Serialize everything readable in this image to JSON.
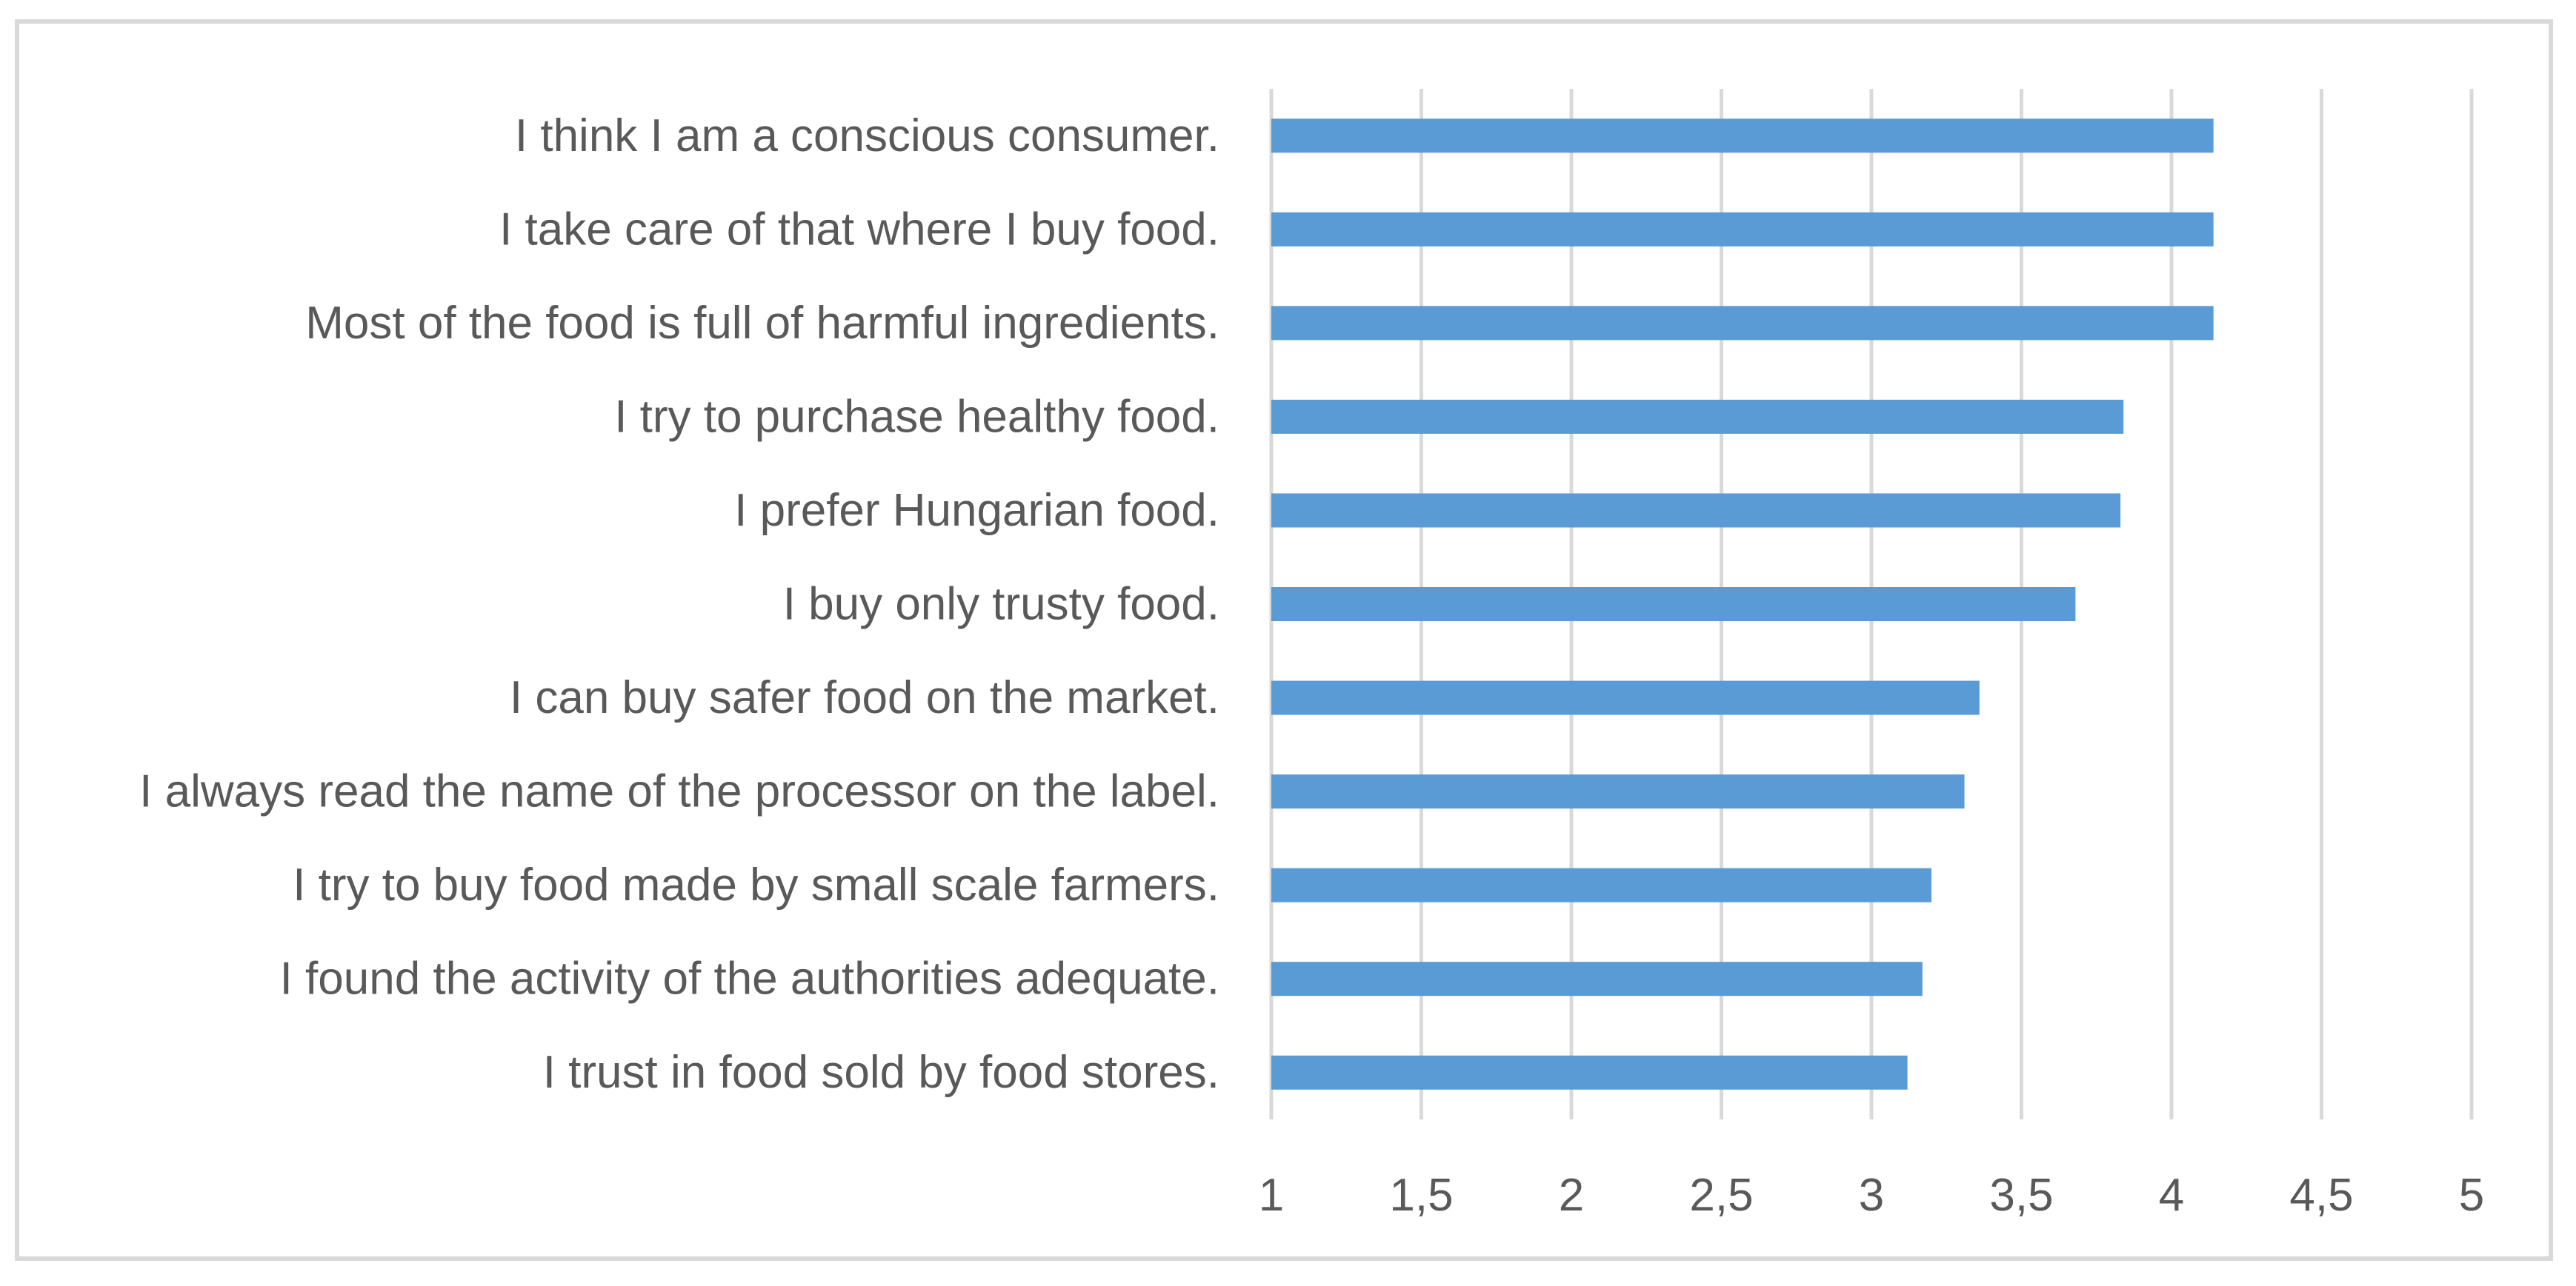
{
  "chart_data": {
    "type": "bar",
    "orientation": "horizontal",
    "categories": [
      "I think I am a conscious consumer.",
      "I take care of that where I buy food.",
      "Most of the food is full of harmful  ingredients.",
      "I try to purchase healthy food.",
      "I prefer Hungarian food.",
      "I buy only trusty food.",
      "I can buy safer food on the market.",
      "I always read the name of the processor on the label.",
      "I try to buy food made by small scale farmers.",
      "I found the activity of the authorities adequate.",
      "I trust in food sold by food stores."
    ],
    "values": [
      4.14,
      4.14,
      4.14,
      3.84,
      3.83,
      3.68,
      3.36,
      3.31,
      3.2,
      3.17,
      3.12
    ],
    "xlim": [
      1,
      5
    ],
    "xticks": [
      1,
      1.5,
      2,
      2.5,
      3,
      3.5,
      4,
      4.5,
      5
    ],
    "xtick_labels": [
      "1",
      "1,5",
      "2",
      "2,5",
      "3",
      "3,5",
      "4",
      "4,5",
      "5"
    ],
    "grid": "vertical",
    "legend": "none",
    "colors": {
      "bar": "#5b9bd5",
      "grid": "#d9d9d9",
      "text": "#595959",
      "frame": "#d9d9d9"
    }
  }
}
